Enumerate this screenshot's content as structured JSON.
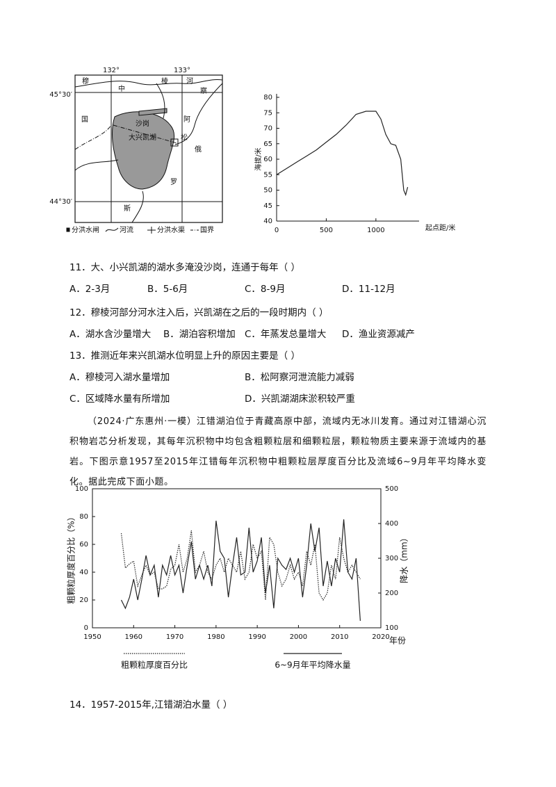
{
  "map": {
    "lon": [
      "132°",
      "133°"
    ],
    "lat": [
      "45°30′",
      "44°30′"
    ],
    "places": [
      "穆",
      "中",
      "棱",
      "河",
      "察",
      "国",
      "阿",
      "松",
      "俄",
      "罗",
      "斯",
      "沙岗",
      "大兴凯湖"
    ],
    "legend": [
      "分洪水闸",
      "河流",
      "分洪水渠",
      "国界"
    ]
  },
  "chart_data": [
    {
      "type": "line",
      "ylabel": "海拔/米",
      "xlabel": "起点距/米",
      "xlim": [
        0,
        1400
      ],
      "xticks": [
        0,
        500,
        1000
      ],
      "ylim": [
        40,
        80
      ],
      "yticks": [
        40,
        45,
        50,
        55,
        60,
        65,
        70,
        75,
        80
      ],
      "x": [
        0,
        100,
        200,
        300,
        400,
        500,
        600,
        700,
        800,
        900,
        1000,
        1050,
        1100,
        1150,
        1200,
        1250,
        1280,
        1300,
        1320
      ],
      "series": [
        {
          "color": "#222222",
          "values": [
            55,
            57,
            59,
            61,
            63,
            65.5,
            68,
            71,
            74.5,
            75.5,
            75.5,
            73,
            68,
            65,
            64.5,
            60,
            50,
            48.5,
            51
          ]
        }
      ]
    },
    {
      "type": "line",
      "ylabel": "粗颗粒厚度百分比（%）",
      "y2label": "降水（mm）",
      "xlabel": "年份",
      "xlim": [
        1950,
        2020
      ],
      "xticks": [
        1950,
        1960,
        1970,
        1980,
        1990,
        2000,
        2010,
        2020
      ],
      "ylim": [
        0,
        100
      ],
      "yticks": [
        0,
        20,
        40,
        60,
        80,
        100
      ],
      "y2lim": [
        100,
        500
      ],
      "y2ticks": [
        100,
        200,
        300,
        400,
        500
      ],
      "x": [
        1957,
        1958,
        1959,
        1960,
        1961,
        1962,
        1963,
        1964,
        1965,
        1966,
        1967,
        1968,
        1969,
        1970,
        1971,
        1972,
        1973,
        1974,
        1975,
        1976,
        1977,
        1978,
        1979,
        1980,
        1981,
        1982,
        1983,
        1984,
        1985,
        1986,
        1987,
        1988,
        1989,
        1990,
        1991,
        1992,
        1993,
        1994,
        1995,
        1996,
        1997,
        1998,
        1999,
        2000,
        2001,
        2002,
        2003,
        2004,
        2005,
        2006,
        2007,
        2008,
        2009,
        2010,
        2011,
        2012,
        2013,
        2014,
        2015
      ],
      "series": [
        {
          "name": "粗颗粒厚度百分比",
          "color": "#222222",
          "style": "dotted",
          "values": [
            68,
            43,
            46,
            48,
            30,
            38,
            45,
            38,
            40,
            28,
            28,
            30,
            42,
            45,
            60,
            40,
            50,
            70,
            40,
            45,
            55,
            40,
            35,
            45,
            50,
            40,
            50,
            45,
            40,
            55,
            35,
            40,
            60,
            50,
            55,
            20,
            65,
            60,
            40,
            30,
            35,
            45,
            35,
            40,
            30,
            55,
            45,
            60,
            25,
            20,
            25,
            45,
            35,
            65,
            50,
            40,
            45,
            40,
            35
          ]
        },
        {
          "name": "6~9月年平均降水量",
          "color": "#222222",
          "style": "solid",
          "axis": "y2",
          "values": [
            180,
            156,
            188,
            240,
            180,
            240,
            308,
            252,
            280,
            188,
            280,
            252,
            308,
            252,
            280,
            200,
            280,
            348,
            240,
            280,
            240,
            280,
            220,
            408,
            320,
            300,
            188,
            280,
            360,
            252,
            260,
            388,
            260,
            292,
            360,
            200,
            280,
            156,
            300,
            280,
            268,
            300,
            260,
            300,
            188,
            280,
            400,
            320,
            388,
            220,
            292,
            220,
            300,
            260,
            412,
            260,
            240,
            300,
            120
          ]
        }
      ]
    }
  ],
  "questions": [
    {
      "stem": "11．大、小兴凯湖的湖水多淹没沙岗，连通于每年（ ）",
      "options": [
        "A．2-3月",
        "B．5-6月",
        "C．8-9月",
        "D．11-12月"
      ]
    },
    {
      "stem": "12．穆棱河部分河水注入后，兴凯湖在之后的一段时期内（ ）",
      "options": [
        "A．湖水含沙量增大",
        "B．湖泊容积增加",
        "C．年蒸发总量增大",
        "D．渔业资源减产"
      ]
    },
    {
      "stem": "13．推测近年来兴凯湖水位明显上升的原因主要是（ ）",
      "options": [
        "A．穆棱河入湖水量增加",
        "B．松阿察河泄流能力减弱",
        "C．区域降水量有所增加",
        "D．兴凯湖湖床淤积较严重"
      ]
    }
  ],
  "passage": "（2024·广东惠州·一模）江错湖泊位于青藏高原中部，流域内无冰川发育。通过对江错湖心沉积物岩芯分析发现，其每年沉积物中均包含粗颗粒层和细颗粒层，颗粒物质主要来源于流域内的基岩。下图示意1957至2015年江错每年沉积物中粗颗粒层厚度百分比及流域6~9月年平均降水变化。据此完成下面小题。",
  "q14": "14．1957-2015年,江错湖泊水量（ ）"
}
